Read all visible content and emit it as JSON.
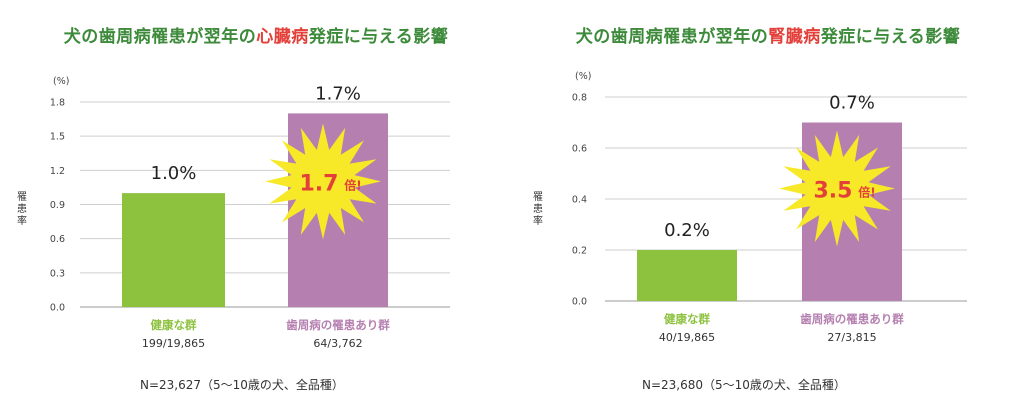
{
  "chart_data": [
    {
      "type": "bar",
      "title_prefix": "犬の歯周病罹患が翌年の",
      "title_highlight": "心臓病",
      "title_suffix": "発症に与える影響",
      "unit": "(%)",
      "ylabel": "罹患率",
      "ylim": [
        0,
        1.8
      ],
      "ticks": [
        "0.0",
        "0.3",
        "0.6",
        "0.9",
        "1.2",
        "1.5",
        "1.8"
      ],
      "categories": [
        "健康な群",
        "歯周病の罹患あり群"
      ],
      "counts": [
        "199/19,865",
        "64/3,762"
      ],
      "values": [
        1.0,
        1.7
      ],
      "value_labels": [
        "1.0%",
        "1.7%"
      ],
      "ratio_main": "1.7",
      "ratio_suffix": "倍!",
      "note": "N=23,627（5〜10歳の犬、全品種）"
    },
    {
      "type": "bar",
      "title_prefix": "犬の歯周病罹患が翌年の",
      "title_highlight": "腎臓病",
      "title_suffix": "発症に与える影響",
      "unit": "(%)",
      "ylabel": "罹患率",
      "ylim": [
        0,
        0.8
      ],
      "ticks": [
        "0.0",
        "0.2",
        "0.4",
        "0.6",
        "0.8"
      ],
      "categories": [
        "健康な群",
        "歯周病の罹患あり群"
      ],
      "counts": [
        "40/19,865",
        "27/3,815"
      ],
      "values": [
        0.2,
        0.7
      ],
      "value_labels": [
        "0.2%",
        "0.7%"
      ],
      "ratio_main": "3.5",
      "ratio_suffix": "倍!",
      "note": "N=23,680（5〜10歳の犬、全品種）"
    }
  ],
  "colors": {
    "healthy": "#8dc23f",
    "disease": "#b57fb0",
    "title": "#3d8a3a",
    "highlight": "#e3403a",
    "star": "#f7e928"
  }
}
